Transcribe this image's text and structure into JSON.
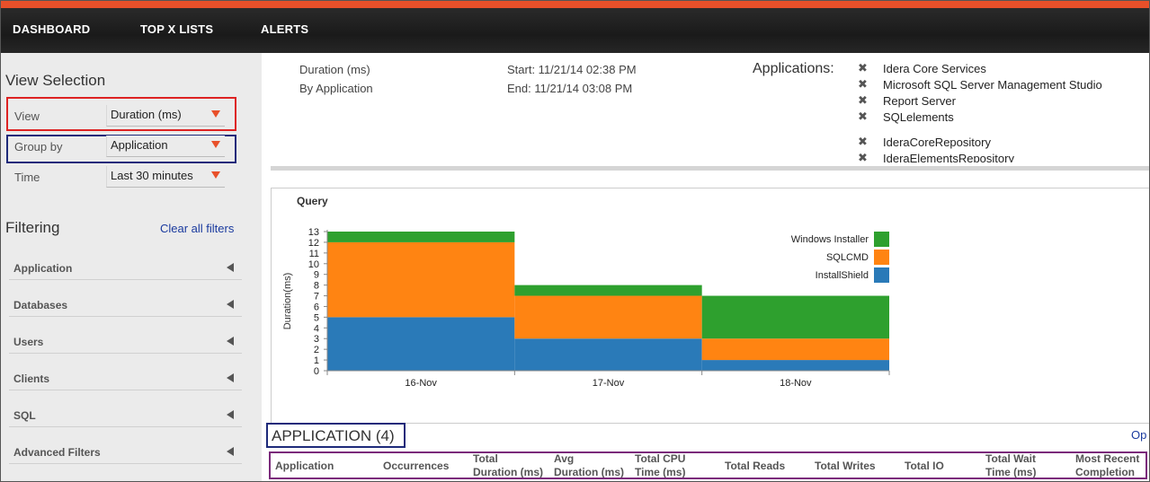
{
  "nav": {
    "items": [
      "DASHBOARD",
      "TOP X LISTS",
      "ALERTS"
    ]
  },
  "sidebar": {
    "view_selection_title": "View Selection",
    "view": {
      "label": "View",
      "value": "Duration (ms)"
    },
    "group_by": {
      "label": "Group by",
      "value": "Application"
    },
    "time": {
      "label": "Time",
      "value": "Last 30 minutes"
    },
    "filtering_title": "Filtering",
    "clear_filters": "Clear all filters",
    "filters": [
      "Application",
      "Databases",
      "Users",
      "Clients",
      "SQL",
      "Advanced Filters"
    ]
  },
  "summary": {
    "metric": "Duration (ms)",
    "grouping": "By Application",
    "start": "Start: 11/21/14 02:38 PM",
    "end": "End: 11/21/14 03:08 PM",
    "applications_label": "Applications:",
    "applications": [
      "Idera Core Services",
      "Microsoft SQL Server Management Studio",
      "Report Server",
      "SQLelements",
      "IderaCoreRepository",
      "IderaElementsRepository"
    ]
  },
  "colors": {
    "accent": "#e8502a",
    "installshield": "#2a7ab8",
    "sqlcmd": "#ff8412",
    "windows_installer": "#2ea02e"
  },
  "chart_data": {
    "type": "area",
    "title": "Query",
    "ylabel": "Duration(ms)",
    "xlabel": "",
    "categories": [
      "16-Nov",
      "17-Nov",
      "18-Nov"
    ],
    "ylim": [
      0,
      13
    ],
    "yticks": [
      0,
      1,
      2,
      3,
      4,
      5,
      6,
      7,
      8,
      9,
      10,
      11,
      12,
      13
    ],
    "stacked": true,
    "step": true,
    "legend_position": "top-right",
    "series": [
      {
        "name": "InstallShield",
        "values": [
          5,
          3,
          1
        ],
        "color": "#2a7ab8"
      },
      {
        "name": "SQLCMD",
        "values": [
          7,
          4,
          2
        ],
        "color": "#ff8412"
      },
      {
        "name": "Windows Installer",
        "values": [
          1,
          1,
          4
        ],
        "color": "#2ea02e"
      }
    ],
    "legend_order": [
      "Windows Installer",
      "SQLCMD",
      "InstallShield"
    ]
  },
  "grid": {
    "title": "APPLICATION (4)",
    "options_label": "Op",
    "columns": [
      [
        "Application"
      ],
      [
        "Occurrences"
      ],
      [
        "Total",
        "Duration (ms)"
      ],
      [
        "Avg",
        "Duration (ms)"
      ],
      [
        "Total CPU",
        "Time (ms)"
      ],
      [
        "Total Reads"
      ],
      [
        "Total Writes"
      ],
      [
        "Total IO"
      ],
      [
        "Total Wait",
        "Time (ms)"
      ],
      [
        "Most Recent",
        "Completion"
      ]
    ]
  }
}
